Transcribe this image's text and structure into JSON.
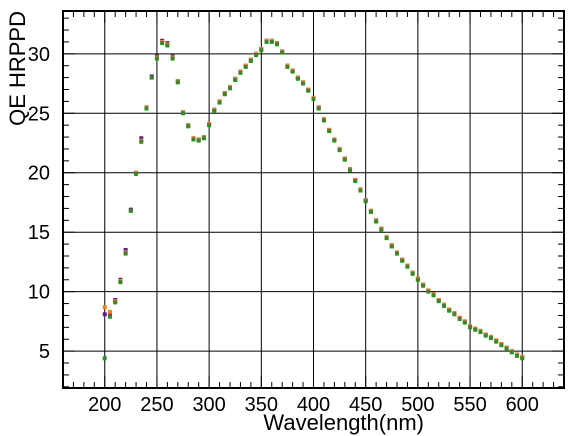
{
  "chart_data": {
    "type": "scatter",
    "title": "",
    "xlabel": "Wavelength(nm)",
    "ylabel": "QE HRPPD",
    "xlim": [
      160,
      640
    ],
    "ylim": [
      1.9,
      33.6
    ],
    "x_ticks": [
      "200",
      "250",
      "300",
      "350",
      "400",
      "450",
      "500",
      "550",
      "600"
    ],
    "y_ticks": [
      "5",
      "10",
      "15",
      "20",
      "25",
      "30"
    ],
    "grid": true,
    "legend": "none",
    "series": [
      {
        "color": "#5b1a8f",
        "x": [
          200,
          205,
          210,
          215,
          220,
          225,
          230,
          235,
          240,
          245,
          250,
          255,
          260,
          265,
          270,
          275,
          280,
          285,
          290,
          295,
          300,
          305,
          310,
          315,
          320,
          325,
          330,
          335,
          340,
          345,
          350,
          355,
          360,
          365,
          370,
          375,
          380,
          385,
          390,
          395,
          400,
          405,
          410,
          415,
          420,
          425,
          430,
          435,
          440,
          445,
          450,
          455,
          460,
          465,
          470,
          475,
          480,
          485,
          490,
          495,
          500,
          505,
          510,
          515,
          520,
          525,
          530,
          535,
          540,
          545,
          550,
          555,
          560,
          565,
          570,
          575,
          580,
          585,
          590,
          595,
          600
        ],
        "y": [
          8.1,
          8.1,
          9.3,
          11.0,
          13.5,
          16.9,
          20.0,
          22.9,
          25.5,
          28.1,
          29.8,
          31.1,
          30.9,
          29.8,
          27.7,
          25.1,
          24.0,
          22.9,
          22.8,
          23.0,
          24.1,
          25.3,
          26.0,
          26.7,
          27.2,
          27.9,
          28.5,
          29.0,
          29.5,
          30.0,
          30.4,
          31.1,
          31.1,
          30.9,
          30.2,
          29.0,
          28.6,
          28.0,
          27.6,
          27.0,
          26.3,
          25.5,
          24.5,
          23.6,
          22.8,
          22.0,
          21.2,
          20.3,
          19.4,
          18.6,
          17.7,
          16.8,
          16.0,
          15.3,
          14.6,
          13.9,
          13.3,
          12.7,
          12.2,
          11.6,
          11.1,
          10.6,
          10.1,
          9.8,
          9.3,
          8.9,
          8.5,
          8.2,
          7.8,
          7.5,
          7.1,
          6.9,
          6.7,
          6.4,
          6.2,
          5.9,
          5.6,
          5.3,
          5.0,
          4.7,
          4.5
        ]
      },
      {
        "color": "#ff7f0e",
        "x": [
          200,
          205,
          210,
          215,
          220,
          225,
          230,
          235,
          240,
          245,
          250,
          255,
          260,
          265,
          270,
          275,
          280,
          285,
          290,
          295,
          300,
          305,
          310,
          315,
          320,
          325,
          330,
          335,
          340,
          345,
          350,
          355,
          360,
          365,
          370,
          375,
          380,
          385,
          390,
          395,
          400,
          405,
          410,
          415,
          420,
          425,
          430,
          435,
          440,
          445,
          450,
          455,
          460,
          465,
          470,
          475,
          480,
          485,
          490,
          495,
          500,
          505,
          510,
          515,
          520,
          525,
          530,
          535,
          540,
          545,
          550,
          555,
          560,
          565,
          570,
          575,
          580,
          585,
          590,
          595,
          600
        ],
        "y": [
          8.7,
          8.3,
          9.2,
          10.9,
          13.3,
          16.8,
          20.0,
          22.7,
          25.5,
          28.0,
          29.7,
          31.0,
          30.8,
          29.7,
          27.7,
          25.1,
          24.0,
          22.9,
          22.8,
          23.0,
          24.1,
          25.3,
          26.0,
          26.7,
          27.2,
          27.9,
          28.5,
          29.0,
          29.5,
          30.0,
          30.4,
          31.1,
          31.1,
          30.9,
          30.2,
          29.0,
          28.6,
          28.0,
          27.6,
          27.0,
          26.3,
          25.5,
          24.5,
          23.6,
          22.8,
          22.0,
          21.2,
          20.3,
          19.4,
          18.6,
          17.7,
          16.8,
          16.0,
          15.3,
          14.6,
          13.9,
          13.3,
          12.7,
          12.2,
          11.6,
          11.1,
          10.6,
          10.1,
          9.8,
          9.3,
          8.9,
          8.5,
          8.2,
          7.8,
          7.5,
          7.1,
          6.9,
          6.7,
          6.4,
          6.2,
          5.9,
          5.6,
          5.3,
          5.0,
          4.7,
          4.5
        ]
      },
      {
        "color": "#2e8b2e",
        "x": [
          200,
          205,
          210,
          215,
          220,
          225,
          230,
          235,
          240,
          245,
          250,
          255,
          260,
          265,
          270,
          275,
          280,
          285,
          290,
          295,
          300,
          305,
          310,
          315,
          320,
          325,
          330,
          335,
          340,
          345,
          350,
          355,
          360,
          365,
          370,
          375,
          380,
          385,
          390,
          395,
          400,
          405,
          410,
          415,
          420,
          425,
          430,
          435,
          440,
          445,
          450,
          455,
          460,
          465,
          470,
          475,
          480,
          485,
          490,
          495,
          500,
          505,
          510,
          515,
          520,
          525,
          530,
          535,
          540,
          545,
          550,
          555,
          560,
          565,
          570,
          575,
          580,
          585,
          590,
          595,
          600
        ],
        "y": [
          4.4,
          7.9,
          9.1,
          10.8,
          13.2,
          16.8,
          19.9,
          22.6,
          25.4,
          28.0,
          29.6,
          30.9,
          30.7,
          29.6,
          27.6,
          25.0,
          23.9,
          22.8,
          22.7,
          22.9,
          24.0,
          25.2,
          25.9,
          26.6,
          27.1,
          27.8,
          28.4,
          28.9,
          29.4,
          29.9,
          30.3,
          31.0,
          31.0,
          30.8,
          30.1,
          28.9,
          28.5,
          27.9,
          27.5,
          26.9,
          26.2,
          25.4,
          24.4,
          23.5,
          22.7,
          21.9,
          21.1,
          20.2,
          19.3,
          18.5,
          17.6,
          16.7,
          15.9,
          15.2,
          14.5,
          13.8,
          13.2,
          12.6,
          12.1,
          11.5,
          11.0,
          10.5,
          10.0,
          9.7,
          9.2,
          8.8,
          8.4,
          8.1,
          7.7,
          7.4,
          7.0,
          6.8,
          6.6,
          6.3,
          6.1,
          5.8,
          5.5,
          5.2,
          4.9,
          4.6,
          4.4
        ]
      }
    ]
  }
}
